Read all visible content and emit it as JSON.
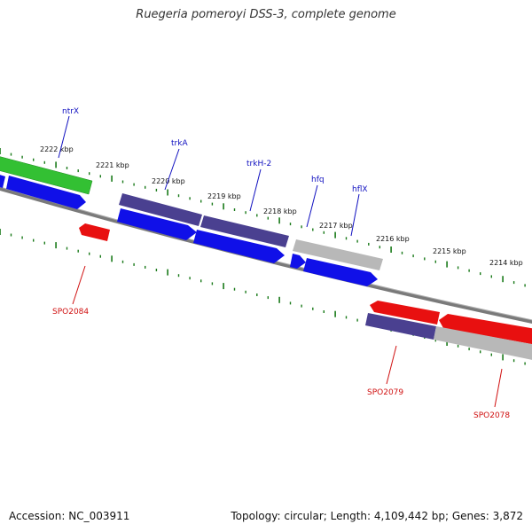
{
  "title": "Ruegeria pomeroyi DSS-3, complete genome",
  "footer": {
    "accession": "Accession: NC_003911",
    "summary": "Topology: circular; Length: 4,109,442 bp; Genes: 3,872"
  },
  "ticks": [
    "2222 kbp",
    "2221 kbp",
    "2220 kbp",
    "2219 kbp",
    "2218 kbp",
    "2217 kbp",
    "2216 kbp",
    "2215 kbp",
    "2214 kbp"
  ],
  "gene_labels_top": [
    "ntrX",
    "trkA",
    "trkH-2",
    "hfq",
    "hflX"
  ],
  "gene_labels_bottom": [
    "SPO2084",
    "SPO2079",
    "SPO2078"
  ],
  "colors": {
    "forward_cds": "#1010e8",
    "reverse_cds": "#e81010",
    "green_feature": "#33c033",
    "purple_feature": "#4a4090",
    "gray_feature": "#b8b8b8",
    "backbone": "#7a7a7a",
    "tick_color": "#1a7a1a",
    "top_label": "#1010c0",
    "bottom_label": "#d01010"
  }
}
